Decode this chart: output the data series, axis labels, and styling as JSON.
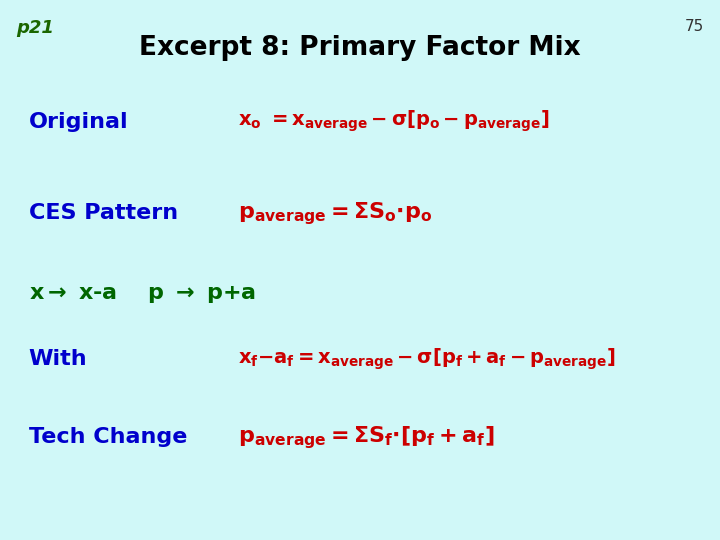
{
  "bg_color": "#d0f8f8",
  "title": "Excerpt 8: Primary Factor Mix",
  "title_color": "#000000",
  "title_fontsize": 19,
  "page_label": "p21",
  "page_label_color": "#1a6600",
  "page_num": "75",
  "page_num_color": "#333333",
  "blue": "#0000cc",
  "red": "#cc0000",
  "green": "#006600",
  "label_fontsize": 16,
  "formula_fontsize": 14,
  "arrow_fontsize": 16
}
